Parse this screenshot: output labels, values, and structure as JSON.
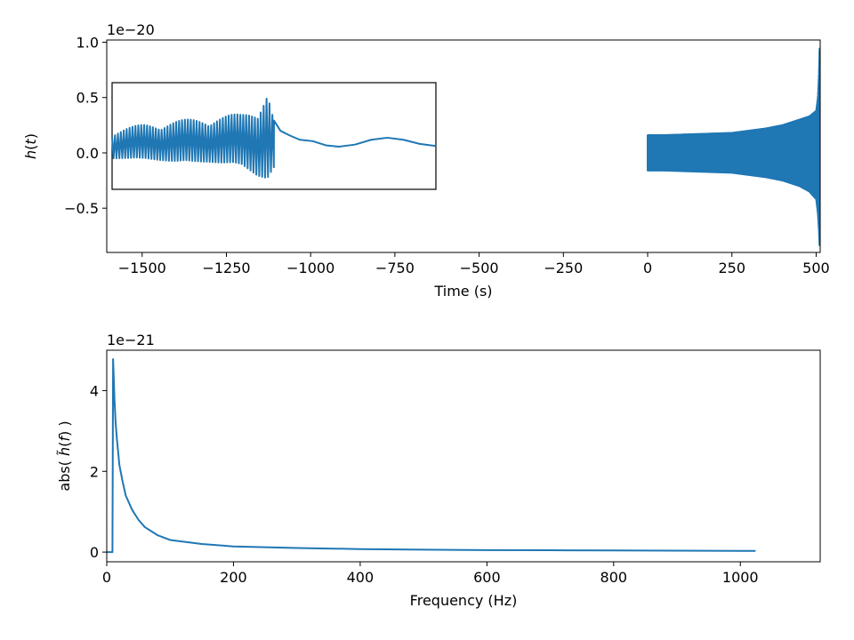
{
  "chart_data": [
    {
      "type": "line",
      "xlabel": "Time (s)",
      "ylabel_parts": [
        "h",
        "(",
        "t",
        ")"
      ],
      "offset_label": "1e−20",
      "xlim": [
        -1605,
        512
      ],
      "ylim": [
        -0.9,
        1.02
      ],
      "xticks": [
        -1500,
        -1250,
        -1000,
        -750,
        -500,
        -250,
        0,
        250,
        500
      ],
      "xtick_labels": [
        "−1500",
        "−1250",
        "−1000",
        "−750",
        "−500",
        "−250",
        "0",
        "250",
        "500"
      ],
      "yticks": [
        -0.5,
        0.0,
        0.5,
        1.0
      ],
      "ytick_labels": [
        "−0.5",
        "0.0",
        "0.5",
        "1.0"
      ],
      "series": [
        {
          "signal_band": {
            "x": [
              0,
              50,
              100,
              150,
              200,
              250,
              300,
              350,
              400,
              450,
              480,
              500,
              505,
              508,
              510,
              512
            ],
            "upper": [
              0.16,
              0.16,
              0.165,
              0.17,
              0.175,
              0.18,
              0.2,
              0.22,
              0.25,
              0.3,
              0.33,
              0.38,
              0.5,
              0.7,
              0.95,
              0.9
            ],
            "lower": [
              -0.16,
              -0.16,
              -0.165,
              -0.17,
              -0.175,
              -0.18,
              -0.2,
              -0.22,
              -0.25,
              -0.3,
              -0.35,
              -0.42,
              -0.55,
              -0.7,
              -0.85,
              -0.75
            ]
          }
        }
      ],
      "inset": {
        "xlim": [
          0,
          100
        ],
        "ylim": [
          -0.5,
          1.05
        ],
        "noisy_segment": {
          "x_end": 50,
          "envelope_x": [
            0,
            10,
            20,
            30,
            40,
            45,
            48,
            50
          ],
          "upper": [
            0.35,
            0.45,
            0.5,
            0.55,
            0.6,
            0.7,
            0.95,
            0.5
          ],
          "lower": [
            -0.05,
            -0.05,
            -0.1,
            -0.1,
            -0.15,
            -0.3,
            -0.35,
            -0.2
          ],
          "period": 0.9
        },
        "ringdown": {
          "x": [
            50,
            52,
            55,
            58,
            62,
            66,
            70,
            75,
            80,
            85,
            90,
            95,
            100
          ],
          "y": [
            0.5,
            0.35,
            0.28,
            0.22,
            0.2,
            0.14,
            0.12,
            0.15,
            0.22,
            0.25,
            0.22,
            0.16,
            0.13
          ]
        }
      }
    },
    {
      "type": "line",
      "xlabel": "Frequency (Hz)",
      "ylabel_parts": [
        "abs( ",
        "h̃",
        "(",
        "f",
        ") )"
      ],
      "offset_label": "1e−21",
      "xlim": [
        0,
        1126
      ],
      "ylim": [
        -0.24,
        5.0
      ],
      "xticks": [
        0,
        200,
        400,
        600,
        800,
        1000
      ],
      "xtick_labels": [
        "0",
        "200",
        "400",
        "600",
        "800",
        "1000"
      ],
      "yticks": [
        0,
        2,
        4
      ],
      "ytick_labels": [
        "0",
        "2",
        "4"
      ],
      "series": [
        {
          "x": [
            0,
            7,
            8,
            9,
            10,
            11,
            12,
            14,
            16,
            20,
            25,
            30,
            40,
            50,
            60,
            80,
            100,
            150,
            200,
            300,
            400,
            500,
            600,
            700,
            800,
            900,
            1000,
            1024
          ],
          "y": [
            0,
            0,
            0,
            0,
            4.78,
            4.35,
            3.85,
            3.2,
            2.8,
            2.15,
            1.75,
            1.4,
            1.05,
            0.8,
            0.62,
            0.42,
            0.3,
            0.2,
            0.14,
            0.1,
            0.075,
            0.06,
            0.05,
            0.045,
            0.04,
            0.035,
            0.03,
            0.03
          ]
        }
      ]
    }
  ]
}
